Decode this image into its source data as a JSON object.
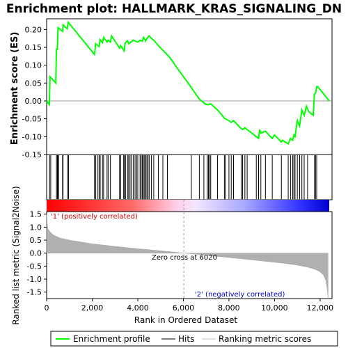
{
  "chart_data": {
    "type": "line",
    "title": "Enrichment plot: HALLMARK_KRAS_SIGNALING_DN",
    "top_panel": {
      "ylabel": "Enrichment score (ES)",
      "ylim": [
        -0.15,
        0.23
      ],
      "yticks": [
        -0.15,
        -0.1,
        -0.05,
        0.0,
        0.05,
        0.1,
        0.15,
        0.2
      ],
      "ytick_labels": [
        "-0.15",
        "-0.10",
        "-0.05",
        "0.00",
        "0.05",
        "0.10",
        "0.15",
        "0.20"
      ],
      "series": [
        {
          "name": "Enrichment profile",
          "color": "#00ff00",
          "x": [
            0,
            120,
            150,
            200,
            400,
            430,
            470,
            500,
            700,
            720,
            900,
            950,
            2100,
            2150,
            2300,
            2350,
            2450,
            2500,
            2650,
            2700,
            2800,
            2850,
            3200,
            3250,
            3400,
            3450,
            3550,
            3600,
            3700,
            3800,
            4000,
            4100,
            4200,
            4250,
            4350,
            4400,
            4500,
            4600,
            4700,
            4900,
            5100,
            5400,
            5700,
            6000,
            6300,
            6700,
            7000,
            7100,
            7200,
            7500,
            7800,
            7850,
            8000,
            8100,
            8200,
            8500,
            8600,
            8700,
            8800,
            9000,
            9200,
            9300,
            9350,
            9400,
            9600,
            9900,
            10000,
            10300,
            10350,
            10600,
            10700,
            10800,
            10850,
            10900,
            11000,
            11100,
            11200,
            11300,
            11400,
            11500,
            11700,
            11750,
            11800,
            11850,
            11900,
            12400
          ],
          "y": [
            0.0,
            -0.01,
            0.068,
            0.065,
            0.05,
            0.145,
            0.145,
            0.205,
            0.195,
            0.213,
            0.202,
            0.22,
            0.13,
            0.16,
            0.152,
            0.172,
            0.163,
            0.178,
            0.165,
            0.17,
            0.165,
            0.182,
            0.148,
            0.155,
            0.14,
            0.163,
            0.168,
            0.16,
            0.165,
            0.17,
            0.165,
            0.17,
            0.167,
            0.178,
            0.168,
            0.175,
            0.182,
            0.175,
            0.17,
            0.155,
            0.142,
            0.122,
            0.095,
            0.068,
            0.042,
            0.005,
            -0.01,
            -0.01,
            -0.008,
            -0.025,
            -0.048,
            -0.05,
            -0.055,
            -0.06,
            -0.055,
            -0.075,
            -0.08,
            -0.075,
            -0.08,
            -0.09,
            -0.1,
            -0.105,
            -0.08,
            -0.09,
            -0.085,
            -0.105,
            -0.095,
            -0.115,
            -0.11,
            -0.12,
            -0.105,
            -0.11,
            -0.095,
            -0.1,
            -0.055,
            -0.07,
            -0.025,
            -0.04,
            -0.015,
            -0.03,
            -0.04,
            0.018,
            0.022,
            0.04,
            0.04,
            0.0
          ]
        }
      ]
    },
    "hits_panel": {
      "name": "Hits",
      "positions": [
        130,
        180,
        430,
        470,
        490,
        520,
        700,
        720,
        930,
        960,
        2100,
        2150,
        2230,
        2300,
        2350,
        2450,
        2500,
        2650,
        2700,
        2800,
        3200,
        3250,
        3380,
        3420,
        3460,
        3550,
        3600,
        3660,
        3720,
        3800,
        3880,
        3950,
        4000,
        4100,
        4150,
        4200,
        4250,
        4300,
        4350,
        4400,
        4450,
        4500,
        4600,
        4700,
        4900,
        5100,
        5300,
        6350,
        6700,
        6900,
        7050,
        7100,
        7150,
        7200,
        7500,
        7800,
        7850,
        8000,
        8100,
        8200,
        8550,
        8600,
        8700,
        8800,
        9200,
        9300,
        9400,
        9600,
        9900,
        10300,
        10600,
        10700,
        10800,
        10850,
        10900,
        11000,
        11100,
        11200,
        11300,
        11450,
        11750,
        11800,
        11850
      ]
    },
    "rank_panel": {
      "name": "Ranking metric scores",
      "ylabel": "Ranked list metric (Signal2Noise)",
      "ylim": [
        -1.75,
        1.6
      ],
      "yticks": [
        -1.5,
        -1.0,
        -0.5,
        0.0,
        0.5,
        1.0,
        1.5
      ],
      "ytick_labels": [
        "-1.5",
        "-1.0",
        "-0.5",
        "0.0",
        "0.5",
        "1.0",
        "1.5"
      ],
      "profile_x": [
        0,
        50,
        150,
        300,
        600,
        1000,
        2000,
        3000,
        4000,
        5000,
        6020,
        7000,
        8000,
        9000,
        10000,
        10500,
        11000,
        11500,
        11800,
        12000,
        12150,
        12250,
        12300,
        12350
      ],
      "profile_y": [
        1.5,
        0.95,
        0.82,
        0.7,
        0.58,
        0.5,
        0.36,
        0.26,
        0.17,
        0.09,
        0.0,
        -0.08,
        -0.17,
        -0.26,
        -0.35,
        -0.4,
        -0.46,
        -0.55,
        -0.63,
        -0.72,
        -0.85,
        -1.05,
        -1.3,
        -1.72
      ],
      "zero_cross_label": "Zero cross at 6020",
      "zero_cross": 6020,
      "pos_label": "'1' (positively correlated)",
      "neg_label": "'2' (negatively correlated)"
    },
    "xlabel": "Rank in Ordered Dataset",
    "xlim": [
      0,
      12400
    ],
    "xticks": [
      0,
      2000,
      4000,
      6000,
      8000,
      10000,
      12000
    ],
    "xtick_labels": [
      "0",
      "2,000",
      "4,000",
      "6,000",
      "8,000",
      "10,000",
      "12,000"
    ],
    "legend": {
      "placement": "bottom",
      "items": [
        {
          "label": "Enrichment profile",
          "color": "#00ff00"
        },
        {
          "label": "Hits",
          "color": "#000000"
        },
        {
          "label": "Ranking metric scores",
          "color": "#c0c0c0"
        }
      ]
    },
    "colors": {
      "positive": "#ff0000",
      "negative": "#0000ff",
      "pos_text": "#cc0000",
      "neg_text": "#0000cc"
    }
  }
}
